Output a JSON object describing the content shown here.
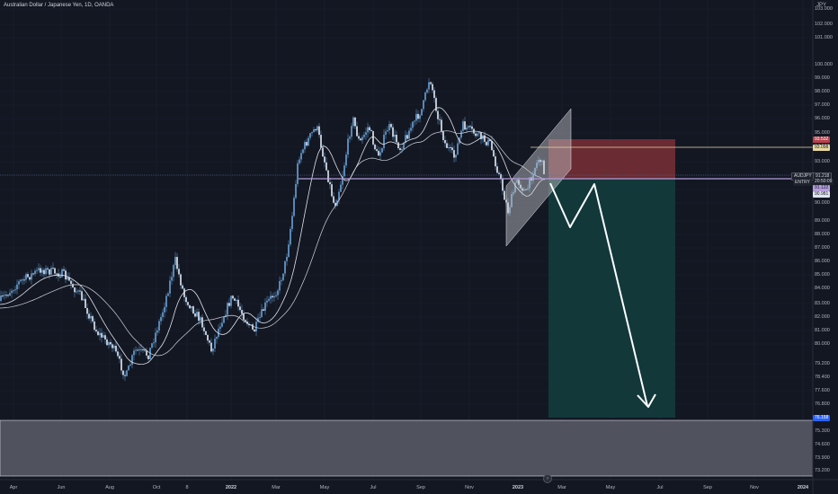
{
  "title": "Australian Dollar / Japanese Yen, 1D, OANDA",
  "currency": "JPY",
  "y_axis_labels": [
    "103.000",
    "102.000",
    "101.000",
    "100.000",
    "99.000",
    "98.000",
    "97.000",
    "96.000",
    "95.000",
    "94.000",
    "93.000",
    "92.000",
    "91.000",
    "90.000",
    "89.000",
    "88.000",
    "87.000",
    "86.000",
    "85.000",
    "84.000",
    "83.000",
    "82.000",
    "81.000",
    "80.000",
    "79.200",
    "78.400",
    "77.600",
    "76.800",
    "75.300",
    "74.600",
    "73.900",
    "73.200"
  ],
  "x_axis_labels": [
    {
      "text": "Apr",
      "bold": false
    },
    {
      "text": "Jun",
      "bold": false
    },
    {
      "text": "Aug",
      "bold": false
    },
    {
      "text": "Oct",
      "bold": false
    },
    {
      "text": "8",
      "bold": false
    },
    {
      "text": "2022",
      "bold": true
    },
    {
      "text": "Mar",
      "bold": false
    },
    {
      "text": "May",
      "bold": false
    },
    {
      "text": "Jul",
      "bold": false
    },
    {
      "text": "Sep",
      "bold": false
    },
    {
      "text": "Nov",
      "bold": false
    },
    {
      "text": "2023",
      "bold": true
    },
    {
      "text": "Mar",
      "bold": false
    },
    {
      "text": "May",
      "bold": false
    },
    {
      "text": "Jul",
      "bold": false
    },
    {
      "text": "Sep",
      "bold": false
    },
    {
      "text": "Nov",
      "bold": false
    },
    {
      "text": "2024",
      "bold": true
    }
  ],
  "price_tags": {
    "stop": "93.532",
    "stop_line": "93.098",
    "symbol": "AUDJPY",
    "last": "91.218",
    "countdown": "20:50:09",
    "entry_label": "ENTRY",
    "entry": "91.122",
    "ma": "90.981",
    "target": "76.158"
  },
  "colors": {
    "background": "#131722",
    "candle": "#6aa3d8",
    "risk_zone": "#7a2f35",
    "reward_zone": "#123a3c",
    "entry_line": "#b39ddb",
    "stop_line": "#e8d8a0",
    "target_zone": "#50535e"
  },
  "icons": {
    "scroll_button": "go-to-realtime-icon"
  }
}
